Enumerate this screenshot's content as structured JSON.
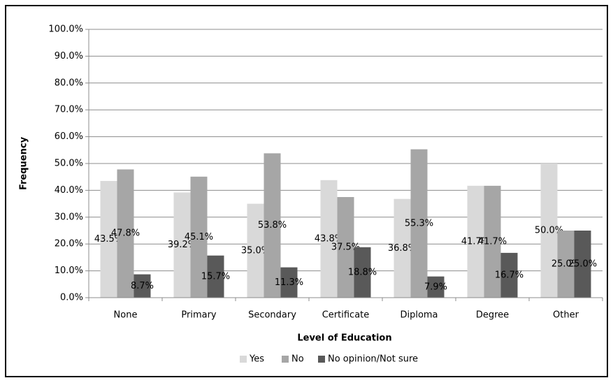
{
  "chart_data": {
    "type": "bar",
    "x_label": "Level of Education",
    "y_label": "Frequency",
    "categories": [
      "None",
      "Primary",
      "Secondary",
      "Certificate",
      "Diploma",
      "Degree",
      "Other"
    ],
    "series": [
      {
        "name": "Yes",
        "color": "#d9d9d9",
        "values": [
          43.5,
          39.2,
          35.0,
          43.8,
          36.8,
          41.7,
          50.0
        ],
        "value_labels": [
          "43.5%",
          "39.2%",
          "35.0%",
          "43.8%",
          "36.8%",
          "41.7%",
          "50.0%"
        ]
      },
      {
        "name": "No",
        "color": "#a6a6a6",
        "values": [
          47.8,
          45.1,
          53.8,
          37.5,
          55.3,
          41.7,
          25.0
        ],
        "value_labels": [
          "47.8%",
          "45.1%",
          "53.8%",
          "37.5%",
          "55.3%",
          "41.7%",
          "25.0%"
        ]
      },
      {
        "name": "No opinion/Not sure",
        "color": "#595959",
        "values": [
          8.7,
          15.7,
          11.3,
          18.8,
          7.9,
          16.7,
          25.0
        ],
        "value_labels": [
          "8.7%",
          "15.7%",
          "11.3%",
          "18.8%",
          "7.9%",
          "16.7%",
          "25.0%"
        ]
      }
    ],
    "ylim": [
      0,
      100
    ],
    "yticks": [
      {
        "value": 0,
        "label": "0.0%"
      },
      {
        "value": 10,
        "label": "10.0%"
      },
      {
        "value": 20,
        "label": "20.0%"
      },
      {
        "value": 30,
        "label": "30.0%"
      },
      {
        "value": 40,
        "label": "40.0%"
      },
      {
        "value": 50,
        "label": "50.0%"
      },
      {
        "value": 60,
        "label": "60.0%"
      },
      {
        "value": 70,
        "label": "70.0%"
      },
      {
        "value": 80,
        "label": "80.0%"
      },
      {
        "value": 90,
        "label": "90.0%"
      },
      {
        "value": 100,
        "label": "100.0%"
      }
    ],
    "grid": true,
    "legend": "bottom"
  }
}
